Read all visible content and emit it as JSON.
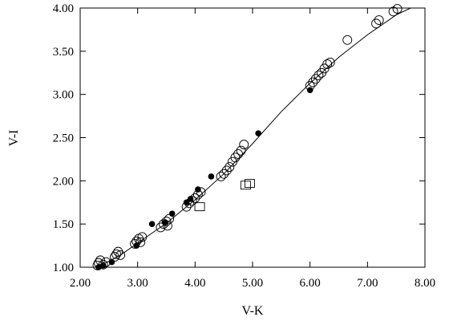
{
  "chart_data": {
    "type": "scatter",
    "title": "",
    "xlabel": "V-K",
    "ylabel": "V-I",
    "xlim": [
      2.0,
      8.0
    ],
    "ylim": [
      1.0,
      4.0
    ],
    "x_ticks": [
      "2.00",
      "3.00",
      "4.00",
      "5.00",
      "6.00",
      "7.00",
      "8.00"
    ],
    "y_ticks": [
      "1.00",
      "1.50",
      "2.00",
      "2.50",
      "3.00",
      "3.50",
      "4.00"
    ],
    "grid": false,
    "legend": "none",
    "series": [
      {
        "marker": "open-circle",
        "points": [
          [
            2.3,
            1.02
          ],
          [
            2.32,
            1.05
          ],
          [
            2.35,
            1.08
          ],
          [
            2.4,
            1.03
          ],
          [
            2.45,
            1.06
          ],
          [
            2.6,
            1.12
          ],
          [
            2.63,
            1.15
          ],
          [
            2.66,
            1.18
          ],
          [
            2.7,
            1.14
          ],
          [
            2.95,
            1.27
          ],
          [
            2.98,
            1.3
          ],
          [
            3.02,
            1.33
          ],
          [
            3.05,
            1.29
          ],
          [
            3.08,
            1.35
          ],
          [
            3.4,
            1.46
          ],
          [
            3.45,
            1.5
          ],
          [
            3.5,
            1.53
          ],
          [
            3.55,
            1.56
          ],
          [
            3.52,
            1.48
          ],
          [
            3.85,
            1.7
          ],
          [
            3.9,
            1.74
          ],
          [
            3.95,
            1.77
          ],
          [
            4.0,
            1.8
          ],
          [
            4.05,
            1.84
          ],
          [
            4.1,
            1.87
          ],
          [
            4.45,
            2.05
          ],
          [
            4.5,
            2.08
          ],
          [
            4.55,
            2.12
          ],
          [
            4.6,
            2.16
          ],
          [
            4.65,
            2.22
          ],
          [
            4.7,
            2.27
          ],
          [
            4.75,
            2.31
          ],
          [
            4.8,
            2.35
          ],
          [
            4.85,
            2.42
          ],
          [
            6.0,
            3.1
          ],
          [
            6.05,
            3.14
          ],
          [
            6.1,
            3.18
          ],
          [
            6.15,
            3.22
          ],
          [
            6.2,
            3.25
          ],
          [
            6.25,
            3.3
          ],
          [
            6.3,
            3.35
          ],
          [
            6.35,
            3.37
          ],
          [
            6.65,
            3.63
          ],
          [
            7.15,
            3.82
          ],
          [
            7.2,
            3.86
          ],
          [
            7.45,
            3.96
          ],
          [
            7.52,
            3.99
          ]
        ]
      },
      {
        "marker": "filled-circle",
        "points": [
          [
            2.32,
            1.0
          ],
          [
            2.4,
            1.02
          ],
          [
            2.55,
            1.06
          ],
          [
            2.98,
            1.25
          ],
          [
            3.25,
            1.5
          ],
          [
            3.48,
            1.52
          ],
          [
            3.6,
            1.62
          ],
          [
            3.85,
            1.75
          ],
          [
            3.92,
            1.79
          ],
          [
            4.05,
            1.9
          ],
          [
            4.28,
            2.05
          ],
          [
            5.1,
            2.55
          ],
          [
            6.0,
            3.05
          ]
        ]
      },
      {
        "marker": "open-square",
        "points": [
          [
            4.08,
            1.7
          ],
          [
            4.88,
            1.95
          ],
          [
            4.95,
            1.97
          ]
        ]
      },
      {
        "marker": "line",
        "points": [
          [
            2.3,
            1.0
          ],
          [
            2.7,
            1.14
          ],
          [
            3.0,
            1.28
          ],
          [
            3.5,
            1.51
          ],
          [
            4.0,
            1.78
          ],
          [
            4.5,
            2.08
          ],
          [
            5.0,
            2.43
          ],
          [
            5.5,
            2.8
          ],
          [
            6.0,
            3.13
          ],
          [
            6.5,
            3.43
          ],
          [
            7.0,
            3.69
          ],
          [
            7.5,
            3.92
          ],
          [
            7.75,
            4.0
          ]
        ]
      }
    ]
  }
}
